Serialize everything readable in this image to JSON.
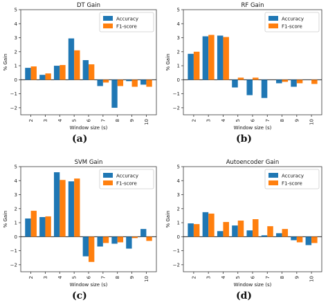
{
  "colors": {
    "accuracy": "#1f77b4",
    "f1": "#ff7f0e",
    "axis": "#333333",
    "zero_line": "#000000"
  },
  "chart_data": [
    {
      "type": "bar",
      "title": "DT Gain",
      "xlabel": "Window size (s)",
      "ylabel": "% Gain",
      "categories": [
        "2",
        "3",
        "4",
        "5",
        "6",
        "7",
        "8",
        "9",
        "10"
      ],
      "series": [
        {
          "name": "Accuracy",
          "values": [
            0.85,
            0.35,
            1.0,
            2.95,
            1.4,
            -0.45,
            -2.0,
            -0.1,
            -0.35
          ]
        },
        {
          "name": "F1-score",
          "values": [
            0.95,
            0.45,
            1.05,
            2.1,
            1.1,
            -0.2,
            -0.45,
            -0.5,
            -0.5
          ]
        }
      ],
      "ylim": [
        -2.5,
        5
      ],
      "yticks": [
        -2,
        -1,
        0,
        1,
        2,
        3,
        4,
        5
      ],
      "legend": "top-right",
      "letter": "(a)"
    },
    {
      "type": "bar",
      "title": "RF Gain",
      "xlabel": "Window size (s)",
      "ylabel": "% Gain",
      "categories": [
        "2",
        "3",
        "4",
        "5",
        "6",
        "7",
        "8",
        "9",
        "10"
      ],
      "series": [
        {
          "name": "Accuracy",
          "values": [
            1.85,
            3.1,
            3.15,
            -0.55,
            -1.1,
            -1.3,
            -0.25,
            -0.5,
            0.0
          ]
        },
        {
          "name": "F1-score",
          "values": [
            2.0,
            3.2,
            3.05,
            0.15,
            0.15,
            0.0,
            -0.15,
            -0.25,
            -0.3
          ]
        }
      ],
      "ylim": [
        -2.5,
        5
      ],
      "yticks": [
        -2,
        -1,
        0,
        1,
        2,
        3,
        4,
        5
      ],
      "legend": "top-right",
      "letter": "(b)"
    },
    {
      "type": "bar",
      "title": "SVM Gain",
      "xlabel": "Window size (s)",
      "ylabel": "% Gain",
      "categories": [
        "2",
        "3",
        "4",
        "5",
        "6",
        "7",
        "8",
        "9",
        "10"
      ],
      "series": [
        {
          "name": "Accuracy",
          "values": [
            1.3,
            1.4,
            4.6,
            3.95,
            -1.4,
            -0.7,
            -0.5,
            -0.85,
            0.55
          ]
        },
        {
          "name": "F1-score",
          "values": [
            1.85,
            1.45,
            4.05,
            4.15,
            -1.8,
            -0.45,
            -0.4,
            -0.1,
            -0.3
          ]
        }
      ],
      "ylim": [
        -2.5,
        5
      ],
      "yticks": [
        -2,
        -1,
        0,
        1,
        2,
        3,
        4,
        5
      ],
      "legend": "top-right",
      "letter": "(c)"
    },
    {
      "type": "bar",
      "title": "Autoencoder Gain",
      "xlabel": "Window size (s)",
      "ylabel": "% Gain",
      "categories": [
        "2",
        "3",
        "4",
        "5",
        "6",
        "7",
        "8",
        "9",
        "10"
      ],
      "series": [
        {
          "name": "Accuracy",
          "values": [
            0.95,
            1.75,
            0.4,
            0.8,
            0.45,
            0.1,
            0.25,
            -0.25,
            -0.6
          ]
        },
        {
          "name": "F1-score",
          "values": [
            0.9,
            1.65,
            1.05,
            1.15,
            1.25,
            0.75,
            0.55,
            -0.4,
            -0.45
          ]
        }
      ],
      "ylim": [
        -2.5,
        5
      ],
      "yticks": [
        -2,
        -1,
        0,
        1,
        2,
        3,
        4,
        5
      ],
      "legend": "top-right",
      "letter": "(d)"
    }
  ]
}
